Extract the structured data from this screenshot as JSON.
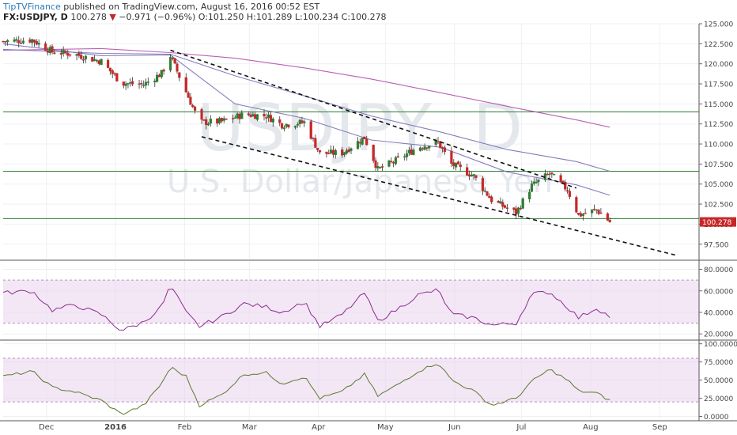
{
  "header": {
    "brand": "TipTVFinance",
    "published": "published on TradingView.com, August 16, 2016 00:52 EST",
    "symbol": "FX:USDJPY, D",
    "price": "100.278",
    "arrow": "▼",
    "change": "−0.971 (−0.96%)",
    "ohlc": "O:101.250 H:101.289 L:100.234 C:100.278"
  },
  "watermark": {
    "symbol": "USDJPY, D",
    "description": "U.S. Dollar/Japanese Yen"
  },
  "colors": {
    "up": "#2e7d32",
    "down": "#c62828",
    "wick": "#333333",
    "ma_short": "#7a6fb3",
    "ma_long": "#b44fa8",
    "hline": "#2e7d32",
    "trend": "#111111",
    "rsi": "#8e2c8e",
    "stoch": "#5a7a2a",
    "band": "#e9d4ee",
    "last_price_bg": "#c62828"
  },
  "chart_data": [
    {
      "type": "candlestick",
      "x_labels": [
        "Dec",
        "2016",
        "Feb",
        "Mar",
        "Apr",
        "May",
        "Jun",
        "Jul",
        "Aug",
        "Sep"
      ],
      "y_ticks": [
        "125.000",
        "122.500",
        "120.000",
        "117.500",
        "115.000",
        "112.500",
        "110.000",
        "107.500",
        "105.000",
        "102.500",
        "100.000",
        "97.500"
      ],
      "ylim": [
        95.7,
        125.0
      ],
      "last_price": "100.278",
      "last_value": 100.278,
      "horizontal_levels": [
        114.0,
        106.6,
        100.7
      ],
      "trendlines": [
        {
          "x0": "2016-02-01",
          "y0": 121.7,
          "x1": "2016-08-01",
          "y1": 104.5
        },
        {
          "x0": "2016-02-15",
          "y0": 110.9,
          "x1": "2016-09-15",
          "y1": 96.1
        }
      ],
      "candle_trend": [
        {
          "d": "2015-11-18",
          "v": 122.8
        },
        {
          "d": "2015-12-01",
          "v": 123.0
        },
        {
          "d": "2015-12-10",
          "v": 121.5
        },
        {
          "d": "2015-12-20",
          "v": 121.2
        },
        {
          "d": "2016-01-01",
          "v": 120.3
        },
        {
          "d": "2016-01-10",
          "v": 117.6
        },
        {
          "d": "2016-01-20",
          "v": 117.4
        },
        {
          "d": "2016-01-28",
          "v": 118.8
        },
        {
          "d": "2016-02-01",
          "v": 121.0
        },
        {
          "d": "2016-02-08",
          "v": 116.5
        },
        {
          "d": "2016-02-14",
          "v": 112.7
        },
        {
          "d": "2016-02-24",
          "v": 112.8
        },
        {
          "d": "2016-03-05",
          "v": 113.7
        },
        {
          "d": "2016-03-15",
          "v": 113.5
        },
        {
          "d": "2016-03-22",
          "v": 112.4
        },
        {
          "d": "2016-04-01",
          "v": 112.7
        },
        {
          "d": "2016-04-08",
          "v": 108.8
        },
        {
          "d": "2016-04-18",
          "v": 108.9
        },
        {
          "d": "2016-04-28",
          "v": 110.8
        },
        {
          "d": "2016-05-04",
          "v": 106.8
        },
        {
          "d": "2016-05-12",
          "v": 107.9
        },
        {
          "d": "2016-05-22",
          "v": 109.6
        },
        {
          "d": "2016-05-31",
          "v": 110.2
        },
        {
          "d": "2016-06-06",
          "v": 107.5
        },
        {
          "d": "2016-06-16",
          "v": 106.0
        },
        {
          "d": "2016-06-24",
          "v": 103.0
        },
        {
          "d": "2016-07-05",
          "v": 101.4
        },
        {
          "d": "2016-07-12",
          "v": 104.8
        },
        {
          "d": "2016-07-20",
          "v": 106.3
        },
        {
          "d": "2016-07-28",
          "v": 104.3
        },
        {
          "d": "2016-08-02",
          "v": 101.1
        },
        {
          "d": "2016-08-10",
          "v": 101.8
        },
        {
          "d": "2016-08-16",
          "v": 100.3
        }
      ],
      "ma_short": [
        {
          "d": "2015-11-18",
          "v": 122.5
        },
        {
          "d": "2016-01-01",
          "v": 121.0
        },
        {
          "d": "2016-02-01",
          "v": 121.1
        },
        {
          "d": "2016-03-01",
          "v": 115.0
        },
        {
          "d": "2016-04-01",
          "v": 113.2
        },
        {
          "d": "2016-05-01",
          "v": 110.5
        },
        {
          "d": "2016-06-01",
          "v": 109.6
        },
        {
          "d": "2016-07-01",
          "v": 106.5
        },
        {
          "d": "2016-08-01",
          "v": 104.9
        },
        {
          "d": "2016-08-16",
          "v": 103.6
        }
      ],
      "ma_mid": [
        {
          "d": "2015-11-18",
          "v": 121.8
        },
        {
          "d": "2016-01-01",
          "v": 121.3
        },
        {
          "d": "2016-02-01",
          "v": 121.2
        },
        {
          "d": "2016-03-01",
          "v": 118.5
        },
        {
          "d": "2016-04-01",
          "v": 116.0
        },
        {
          "d": "2016-05-01",
          "v": 113.5
        },
        {
          "d": "2016-06-01",
          "v": 111.5
        },
        {
          "d": "2016-07-01",
          "v": 109.3
        },
        {
          "d": "2016-08-01",
          "v": 107.8
        },
        {
          "d": "2016-08-16",
          "v": 106.6
        }
      ],
      "ma_long": [
        {
          "d": "2015-11-18",
          "v": 121.7
        },
        {
          "d": "2016-01-01",
          "v": 121.9
        },
        {
          "d": "2016-02-01",
          "v": 121.4
        },
        {
          "d": "2016-03-01",
          "v": 120.7
        },
        {
          "d": "2016-04-01",
          "v": 119.5
        },
        {
          "d": "2016-05-01",
          "v": 118.1
        },
        {
          "d": "2016-06-01",
          "v": 116.4
        },
        {
          "d": "2016-07-01",
          "v": 114.7
        },
        {
          "d": "2016-08-01",
          "v": 113.0
        },
        {
          "d": "2016-08-16",
          "v": 112.1
        }
      ]
    },
    {
      "type": "line",
      "name": "RSI",
      "y_ticks": [
        "80.0000",
        "60.0000",
        "40.0000",
        "20.0000"
      ],
      "ylim": [
        15,
        87
      ],
      "band": [
        30,
        70
      ],
      "points": [
        {
          "d": "2015-11-18",
          "v": 58
        },
        {
          "d": "2015-12-01",
          "v": 60
        },
        {
          "d": "2015-12-10",
          "v": 42
        },
        {
          "d": "2015-12-20",
          "v": 47
        },
        {
          "d": "2016-01-01",
          "v": 38
        },
        {
          "d": "2016-01-10",
          "v": 23
        },
        {
          "d": "2016-01-20",
          "v": 31
        },
        {
          "d": "2016-01-28",
          "v": 45
        },
        {
          "d": "2016-02-01",
          "v": 65
        },
        {
          "d": "2016-02-08",
          "v": 40
        },
        {
          "d": "2016-02-14",
          "v": 27
        },
        {
          "d": "2016-02-24",
          "v": 36
        },
        {
          "d": "2016-03-05",
          "v": 48
        },
        {
          "d": "2016-03-15",
          "v": 45
        },
        {
          "d": "2016-03-22",
          "v": 40
        },
        {
          "d": "2016-04-01",
          "v": 50
        },
        {
          "d": "2016-04-08",
          "v": 27
        },
        {
          "d": "2016-04-18",
          "v": 38
        },
        {
          "d": "2016-04-28",
          "v": 58
        },
        {
          "d": "2016-05-04",
          "v": 32
        },
        {
          "d": "2016-05-12",
          "v": 42
        },
        {
          "d": "2016-05-22",
          "v": 56
        },
        {
          "d": "2016-05-31",
          "v": 61
        },
        {
          "d": "2016-06-06",
          "v": 38
        },
        {
          "d": "2016-06-16",
          "v": 35
        },
        {
          "d": "2016-06-24",
          "v": 28
        },
        {
          "d": "2016-07-05",
          "v": 30
        },
        {
          "d": "2016-07-12",
          "v": 57
        },
        {
          "d": "2016-07-20",
          "v": 59
        },
        {
          "d": "2016-07-28",
          "v": 45
        },
        {
          "d": "2016-08-02",
          "v": 35
        },
        {
          "d": "2016-08-10",
          "v": 44
        },
        {
          "d": "2016-08-16",
          "v": 36
        }
      ]
    },
    {
      "type": "line",
      "name": "Stochastic",
      "y_ticks": [
        "100.0000",
        "75.0000",
        "50.0000",
        "25.0000",
        "0.0000"
      ],
      "ylim": [
        -6,
        104
      ],
      "band": [
        20,
        80
      ],
      "points": [
        {
          "d": "2015-11-18",
          "v": 55
        },
        {
          "d": "2015-12-01",
          "v": 62
        },
        {
          "d": "2015-12-10",
          "v": 40
        },
        {
          "d": "2015-12-20",
          "v": 34
        },
        {
          "d": "2016-01-01",
          "v": 22
        },
        {
          "d": "2016-01-10",
          "v": 3
        },
        {
          "d": "2016-01-20",
          "v": 15
        },
        {
          "d": "2016-01-28",
          "v": 45
        },
        {
          "d": "2016-02-01",
          "v": 68
        },
        {
          "d": "2016-02-08",
          "v": 55
        },
        {
          "d": "2016-02-14",
          "v": 15
        },
        {
          "d": "2016-02-24",
          "v": 30
        },
        {
          "d": "2016-03-05",
          "v": 58
        },
        {
          "d": "2016-03-15",
          "v": 60
        },
        {
          "d": "2016-03-22",
          "v": 45
        },
        {
          "d": "2016-04-01",
          "v": 55
        },
        {
          "d": "2016-04-08",
          "v": 25
        },
        {
          "d": "2016-04-18",
          "v": 34
        },
        {
          "d": "2016-04-28",
          "v": 58
        },
        {
          "d": "2016-05-04",
          "v": 28
        },
        {
          "d": "2016-05-12",
          "v": 42
        },
        {
          "d": "2016-05-22",
          "v": 62
        },
        {
          "d": "2016-05-31",
          "v": 74
        },
        {
          "d": "2016-06-06",
          "v": 50
        },
        {
          "d": "2016-06-16",
          "v": 35
        },
        {
          "d": "2016-06-24",
          "v": 15
        },
        {
          "d": "2016-07-05",
          "v": 25
        },
        {
          "d": "2016-07-12",
          "v": 48
        },
        {
          "d": "2016-07-20",
          "v": 65
        },
        {
          "d": "2016-07-28",
          "v": 50
        },
        {
          "d": "2016-08-02",
          "v": 35
        },
        {
          "d": "2016-08-10",
          "v": 32
        },
        {
          "d": "2016-08-16",
          "v": 22
        }
      ]
    }
  ]
}
